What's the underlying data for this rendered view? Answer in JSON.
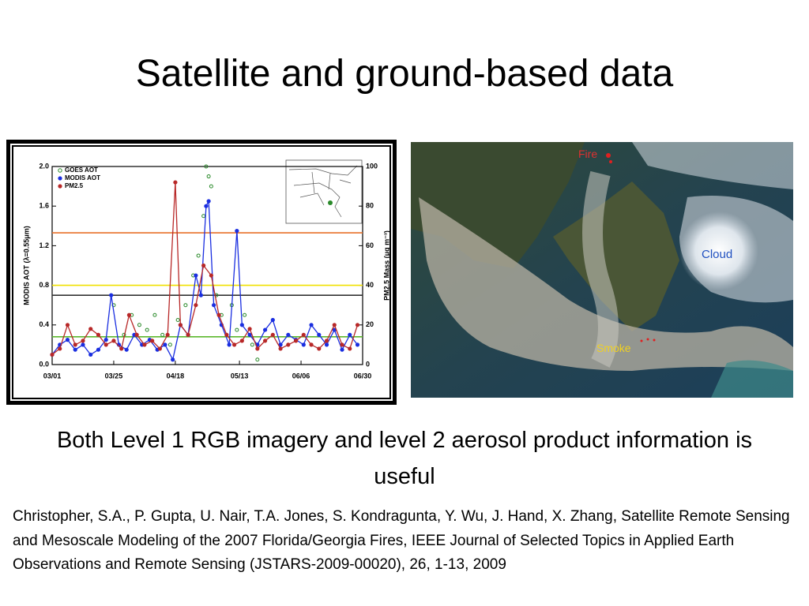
{
  "title": "Satellite and ground-based data",
  "chart_data": {
    "type": "line",
    "ylabel": "MODIS AOT (λ=0.55μm)",
    "y2label": "PM2.5 Mass (μg m⁻³)",
    "xlim": [
      0,
      121
    ],
    "xticks": [
      {
        "value": 0,
        "label": "03/01"
      },
      {
        "value": 24,
        "label": "03/25"
      },
      {
        "value": 48,
        "label": "04/18"
      },
      {
        "value": 73,
        "label": "05/13"
      },
      {
        "value": 97,
        "label": "06/06"
      },
      {
        "value": 121,
        "label": "06/30"
      }
    ],
    "ylim": [
      0,
      2
    ],
    "yticks": [
      {
        "value": 0,
        "label": "0.0"
      },
      0.4,
      0.8,
      1.2,
      1.6,
      {
        "value": 2,
        "label": "2.0"
      }
    ],
    "y2lim": [
      0,
      100
    ],
    "y2ticks": [
      0,
      20,
      40,
      60,
      80,
      100
    ],
    "reference_lines": [
      {
        "value": 1.33,
        "color": "#e8702a"
      },
      {
        "value": 0.8,
        "color": "#f0e000"
      },
      {
        "value": 0.7,
        "color": "#333333"
      },
      {
        "value": 0.28,
        "color": "#5cb82e"
      }
    ],
    "series": [
      {
        "name": "GOES AOT",
        "color": "#2a8a2a",
        "style": "markers",
        "x": [
          24,
          28,
          31,
          34,
          37,
          40,
          43,
          46,
          49,
          52,
          55,
          57,
          59,
          60,
          61,
          62,
          64,
          66,
          68,
          70,
          72,
          75,
          78,
          80
        ],
        "values": [
          0.6,
          0.3,
          0.5,
          0.4,
          0.35,
          0.5,
          0.3,
          0.2,
          0.45,
          0.6,
          0.9,
          1.1,
          1.5,
          2.0,
          1.9,
          1.8,
          0.7,
          0.5,
          0.3,
          0.6,
          0.35,
          0.5,
          0.2,
          0.05
        ]
      },
      {
        "name": "MODIS AOT",
        "color": "#1a2ee0",
        "style": "line",
        "x": [
          0,
          3,
          6,
          9,
          12,
          15,
          18,
          21,
          23,
          26,
          29,
          32,
          35,
          38,
          41,
          44,
          47,
          50,
          53,
          56,
          58,
          60,
          61,
          63,
          66,
          69,
          72,
          74,
          77,
          80,
          83,
          86,
          89,
          92,
          95,
          98,
          101,
          104,
          107,
          110,
          113,
          116,
          119
        ],
        "values": [
          0.1,
          0.2,
          0.25,
          0.15,
          0.2,
          0.1,
          0.15,
          0.25,
          0.7,
          0.2,
          0.15,
          0.3,
          0.2,
          0.25,
          0.15,
          0.2,
          0.05,
          0.4,
          0.3,
          0.9,
          0.7,
          1.6,
          1.65,
          0.6,
          0.4,
          0.2,
          1.35,
          0.4,
          0.3,
          0.2,
          0.35,
          0.45,
          0.2,
          0.3,
          0.25,
          0.2,
          0.4,
          0.3,
          0.2,
          0.35,
          0.15,
          0.3,
          0.2
        ]
      },
      {
        "name": "PM2.5",
        "color": "#b82828",
        "style": "line",
        "axis": "y2",
        "x": [
          0,
          3,
          6,
          9,
          12,
          15,
          18,
          21,
          24,
          27,
          30,
          33,
          36,
          39,
          42,
          45,
          48,
          50,
          53,
          56,
          59,
          62,
          65,
          68,
          71,
          74,
          77,
          80,
          83,
          86,
          89,
          92,
          95,
          98,
          101,
          104,
          107,
          110,
          113,
          116,
          119
        ],
        "values": [
          5,
          8,
          20,
          10,
          12,
          18,
          15,
          10,
          12,
          8,
          25,
          15,
          10,
          12,
          8,
          15,
          92,
          20,
          15,
          30,
          50,
          45,
          25,
          15,
          10,
          12,
          18,
          8,
          12,
          15,
          8,
          10,
          12,
          15,
          10,
          8,
          12,
          20,
          10,
          8,
          20
        ]
      }
    ]
  },
  "image_labels": {
    "fire": "Fire",
    "cloud": "Cloud",
    "smoke": "Smoke"
  },
  "caption": "Both Level 1 RGB imagery and level 2 aerosol product information is useful",
  "citation": "Christopher, S.A., P. Gupta, U. Nair, T.A. Jones, S. Kondragunta, Y. Wu, J. Hand, X. Zhang, Satellite Remote Sensing and Mesoscale Modeling of the 2007 Florida/Georgia Fires, IEEE Journal of Selected Topics in Applied Earth Observations and Remote Sensing (JSTARS-2009-00020), 26, 1-13, 2009"
}
